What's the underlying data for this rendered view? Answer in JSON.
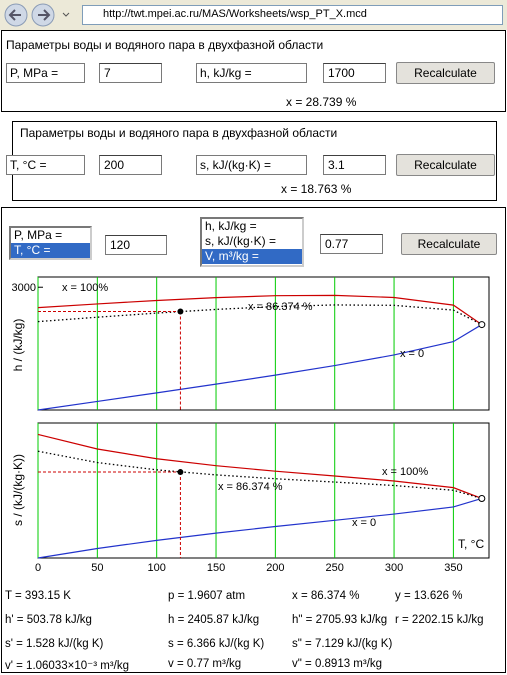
{
  "browser": {
    "url": "http://twt.mpei.ac.ru/MAS/Worksheets/wsp_PT_X.mcd"
  },
  "panels": [
    {
      "title": "Параметры воды и водяного пара в двухфазной области",
      "select1": "P, MPa =",
      "input1": "7",
      "select2": "h, kJ/kg =",
      "input2": "1700",
      "button": "Recalculate",
      "result": "x = 28.739 %"
    },
    {
      "title": "Параметры воды и водяного пара в двухфазной области",
      "select1": "T, °C =",
      "input1": "200",
      "select2": "s, kJ/(kg·K) =",
      "input2": "3.1",
      "button": "Recalculate",
      "result": "x = 18.763 %"
    }
  ],
  "calc": {
    "list1": [
      "P, MPa =",
      "T, °C ="
    ],
    "list1_selected": 1,
    "input1": "120",
    "list2": [
      "h, kJ/kg =",
      "s, kJ/(kg·K) =",
      "V, m³/kg ="
    ],
    "list2_selected": 2,
    "input2": "0.77",
    "button": "Recalculate"
  },
  "chart_data": [
    {
      "type": "line",
      "y_label": "h / (kJ/kg)",
      "x": [
        0,
        50,
        100,
        150,
        200,
        250,
        300,
        350,
        373.946
      ],
      "series": [
        {
          "name": "x = 100%",
          "color": "#cc0000",
          "style": "solid",
          "values": [
            2501,
            2592,
            2676,
            2746,
            2793,
            2801,
            2749,
            2563,
            2087.5
          ]
        },
        {
          "name": "x = 86.374 %",
          "color": "#000000",
          "style": "dotted",
          "values": [
            2160.2,
            2267.3,
            2368.5,
            2458.0,
            2528.6,
            2567.3,
            2557.7,
            2441.4,
            2087.5
          ]
        },
        {
          "name": "x = 0",
          "color": "#2233cc",
          "style": "solid",
          "values": [
            0,
            209.3,
            419.1,
            632.2,
            852.3,
            1085.7,
            1344.8,
            1670.9,
            2087.5
          ]
        }
      ],
      "xlim": [
        0,
        380
      ],
      "ylim": [
        0,
        3250
      ],
      "xticks": [
        0,
        50,
        100,
        150,
        200,
        250,
        300,
        350
      ],
      "yticks": [
        3000
      ],
      "grid": true,
      "xtick_labels": false,
      "point": {
        "x": 120,
        "y": 2405.87
      },
      "critical": {
        "x": 373.946,
        "y": 2087.5
      }
    },
    {
      "type": "line",
      "y_label": "s / (kJ/(kg·K))",
      "x_label": "T, °C",
      "x": [
        0,
        50,
        100,
        150,
        200,
        250,
        300,
        350,
        373.946
      ],
      "series": [
        {
          "name": "x = 100%",
          "color": "#cc0000",
          "style": "solid",
          "values": [
            9.155,
            8.075,
            7.354,
            6.837,
            6.43,
            6.072,
            5.704,
            5.212,
            4.41
          ]
        },
        {
          "name": "x = 86.374 %",
          "color": "#000000",
          "style": "dotted",
          "values": [
            7.908,
            7.071,
            6.53,
            6.156,
            5.871,
            5.625,
            5.37,
            5.017,
            4.41
          ]
        },
        {
          "name": "x = 0",
          "color": "#2233cc",
          "style": "solid",
          "values": [
            0,
            0.704,
            1.307,
            1.842,
            2.331,
            2.793,
            3.255,
            3.78,
            4.41
          ]
        }
      ],
      "xlim": [
        0,
        380
      ],
      "ylim": [
        0,
        10
      ],
      "xticks": [
        0,
        50,
        100,
        150,
        200,
        250,
        300,
        350
      ],
      "yticks": [],
      "grid": true,
      "xtick_labels": true,
      "point": {
        "x": 120,
        "y": 6.366
      },
      "critical": {
        "x": 373.946,
        "y": 4.41
      }
    }
  ],
  "results": [
    [
      "T = 393.15 K",
      "p = 1.9607 atm",
      "x = 86.374 %",
      "y = 13.626 %"
    ],
    [
      "h' = 503.78 kJ/kg",
      "h = 2405.87 kJ/kg",
      "h\" = 2705.93 kJ/kg",
      "r = 2202.15 kJ/kg"
    ],
    [
      "s' = 1.528 kJ/(kg K)",
      "s = 6.366 kJ/(kg K)",
      "s\" = 7.129 kJ/(kg K)"
    ],
    [
      "v' = 1.06033×10⁻³ m³/kg",
      "v = 0.77 m³/kg",
      "v\" = 0.8913 m³/kg"
    ]
  ]
}
